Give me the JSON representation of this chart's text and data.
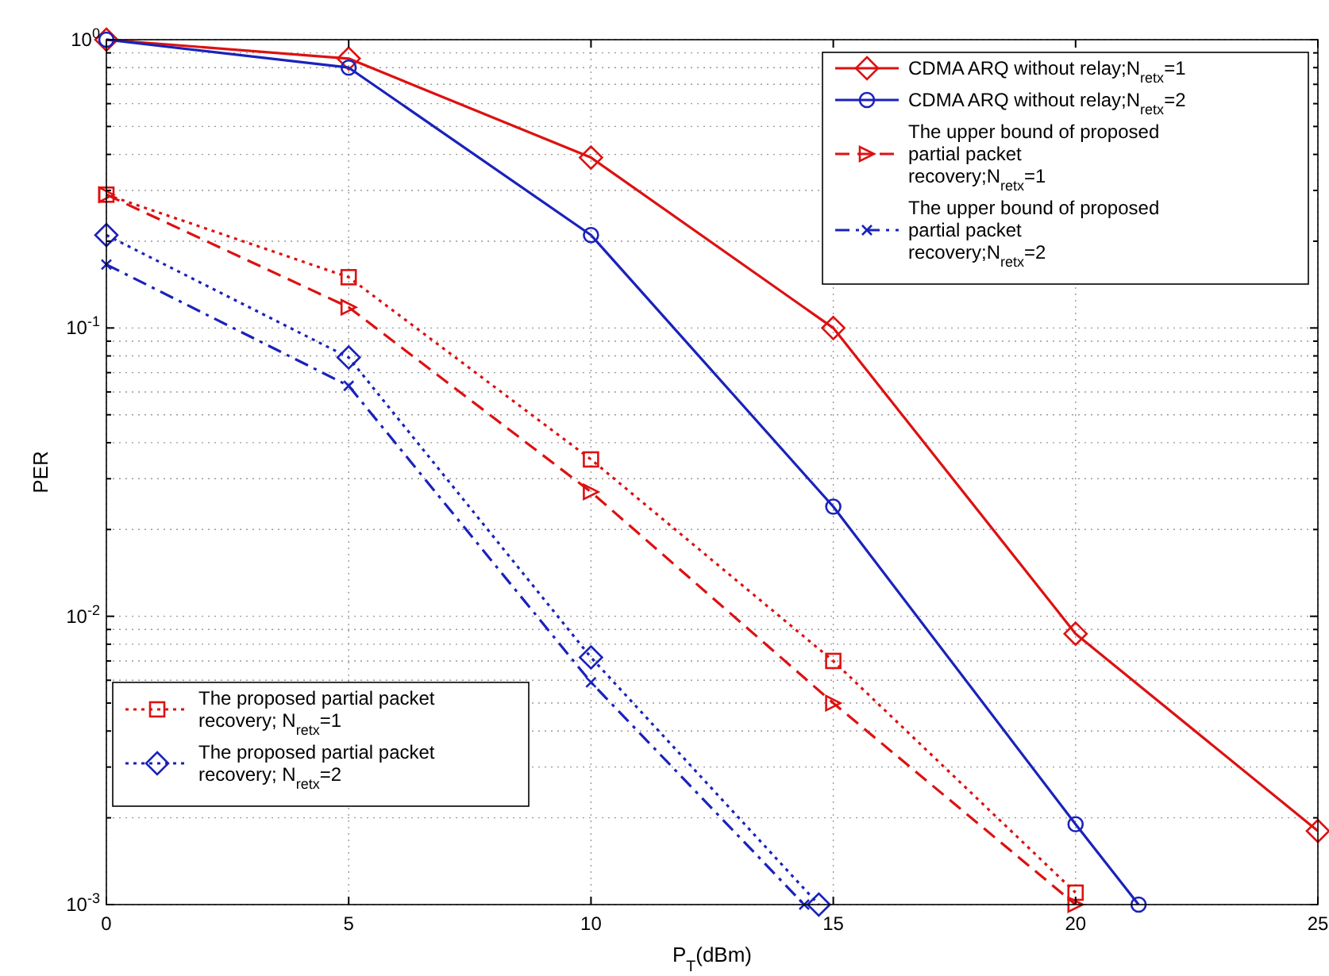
{
  "chart_data": {
    "type": "line",
    "xlabel": "P$_{T}$(dBm)",
    "ylabel": "PER",
    "log": "y",
    "grid": true,
    "legend": "top right",
    "xlim": [
      0,
      25
    ],
    "xticks": [
      0,
      5,
      10,
      15,
      20,
      25
    ],
    "ylim": [
      0.001,
      1
    ],
    "yticks": [
      {
        "value": 0.001,
        "label": "10$^{-3}$"
      },
      {
        "value": 0.01,
        "label": "10$^{-2}$"
      },
      {
        "value": 0.1,
        "label": "10$^{-1}$"
      },
      {
        "value": 1,
        "label": "10$^{0}$"
      }
    ],
    "series": [
      {
        "name": "CDMA ARQ without relay;N$_{retx}$=1",
        "color": "#dd1111",
        "marker": "diamond",
        "line_style": "solid",
        "x": [
          0,
          5,
          10,
          15,
          20,
          25
        ],
        "values": [
          1,
          0.86,
          0.39,
          0.1,
          0.0087,
          0.0018
        ]
      },
      {
        "name": "CDMA ARQ without relay;N$_{retx}$=2",
        "color": "#1a22bb",
        "marker": "circle",
        "line_style": "solid",
        "x": [
          0,
          5,
          10,
          15,
          20,
          21.3
        ],
        "values": [
          1,
          0.8,
          0.21,
          0.024,
          0.0019,
          0.001
        ]
      },
      {
        "name": "The upper bound of proposed partial packet recovery;N$_{retx}$=1",
        "color": "#dd1111",
        "marker": "triangle",
        "line_style": "dashed",
        "x": [
          0,
          5,
          10,
          15,
          20
        ],
        "values": [
          0.29,
          0.118,
          0.027,
          0.005,
          0.001
        ]
      },
      {
        "name": "The upper bound of proposed partial packet recovery;N$_{retx}$=2",
        "color": "#1a22bb",
        "marker": "cross",
        "line_style": "dashdot",
        "x": [
          0,
          5,
          10,
          14.4
        ],
        "values": [
          0.166,
          0.063,
          0.0059,
          0.001
        ]
      },
      {
        "name": "The proposed partial packet recovery; N$_{retx}$=1",
        "color": "#dd1111",
        "marker": "square",
        "line_style": "dotted",
        "x": [
          0,
          5,
          10,
          15,
          20
        ],
        "values": [
          0.29,
          0.15,
          0.035,
          0.007,
          0.0011
        ]
      },
      {
        "name": "The proposed partial packet recovery; N$_{retx}$=2",
        "color": "#1a22bb",
        "marker": "diamond",
        "line_style": "dotted",
        "x": [
          0,
          5,
          10,
          14.7
        ],
        "values": [
          0.21,
          0.079,
          0.0072,
          0.001
        ]
      }
    ]
  }
}
